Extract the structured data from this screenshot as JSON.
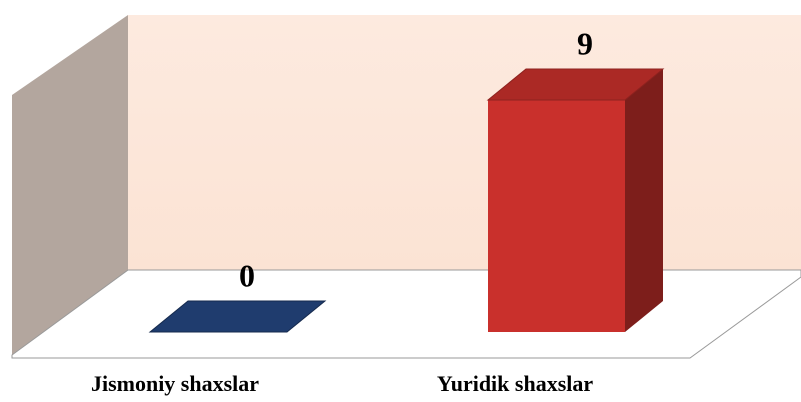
{
  "chart_data": {
    "type": "bar3d",
    "categories": [
      "Jismoniy shaxslar",
      "Yuridik shaxslar"
    ],
    "values": [
      0,
      9
    ],
    "colors": [
      "#1f3c6e",
      "#c9302c"
    ]
  }
}
